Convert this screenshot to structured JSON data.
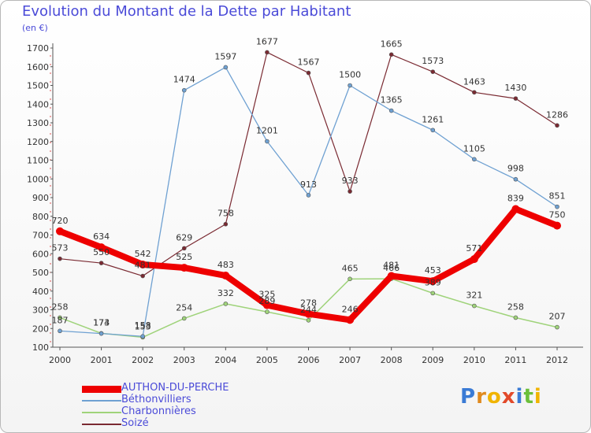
{
  "title": "Evolution du Montant de la Dette par Habitant",
  "unit": "(en €)",
  "brand": {
    "text": "Proxiti",
    "letter_colors": [
      "#3a7bd5",
      "#e08a1e",
      "#f0b400",
      "#e24a2a",
      "#3a7bd5",
      "#6bbf3a",
      "#f0b400"
    ]
  },
  "chart_data": {
    "type": "line",
    "x": [
      "2000",
      "2001",
      "2002",
      "2003",
      "2004",
      "2005",
      "2006",
      "2007",
      "2008",
      "2009",
      "2010",
      "2011",
      "2012"
    ],
    "ylim": [
      100,
      1700
    ],
    "yticks": [
      100,
      200,
      300,
      400,
      500,
      600,
      700,
      800,
      900,
      1000,
      1100,
      1200,
      1300,
      1400,
      1500,
      1600,
      1700
    ],
    "grid": false,
    "legend_position": "bottom-left",
    "series": [
      {
        "name": "Soizé",
        "color": "#7a2a32",
        "width": 1.2,
        "marker": 5,
        "values": [
          573,
          550,
          481,
          629,
          758,
          1677,
          1567,
          933,
          1665,
          1573,
          1463,
          1430,
          1286
        ],
        "labels": [
          "573",
          "550",
          "481",
          "629",
          "758",
          "1677",
          "1567",
          "933",
          "1665",
          "1573",
          "1463",
          "1430",
          "1286"
        ]
      },
      {
        "name": "Charbonnières",
        "color": "#9fd37a",
        "width": 1.5,
        "marker": 5,
        "values": [
          258,
          174,
          153,
          254,
          332,
          289,
          244,
          465,
          466,
          389,
          321,
          258,
          207
        ],
        "labels": [
          "258",
          "174",
          "153",
          "254",
          "332",
          "289",
          "244",
          "465",
          "466",
          "389",
          "321",
          "258",
          "207"
        ]
      },
      {
        "name": "Béthonvilliers",
        "color": "#6fa1d2",
        "width": 1.3,
        "marker": 5,
        "values": [
          187,
          173,
          158,
          1474,
          1597,
          1201,
          913,
          1500,
          1365,
          1261,
          1105,
          998,
          851
        ],
        "labels": [
          "187",
          "173",
          "158",
          "1474",
          "1597",
          "1201",
          "913",
          "1500",
          "1365",
          "1261",
          "1105",
          "998",
          "851"
        ]
      },
      {
        "name": "AUTHON-DU-PERCHE",
        "color": "#ee0000",
        "width": 8,
        "marker": 7,
        "values": [
          720,
          634,
          542,
          525,
          483,
          325,
          278,
          246,
          481,
          453,
          571,
          839,
          750
        ],
        "labels": [
          "720",
          "634",
          "542",
          "525",
          "483",
          "325",
          "278",
          "246",
          "481",
          "453",
          "571",
          "839",
          "750"
        ]
      }
    ]
  }
}
